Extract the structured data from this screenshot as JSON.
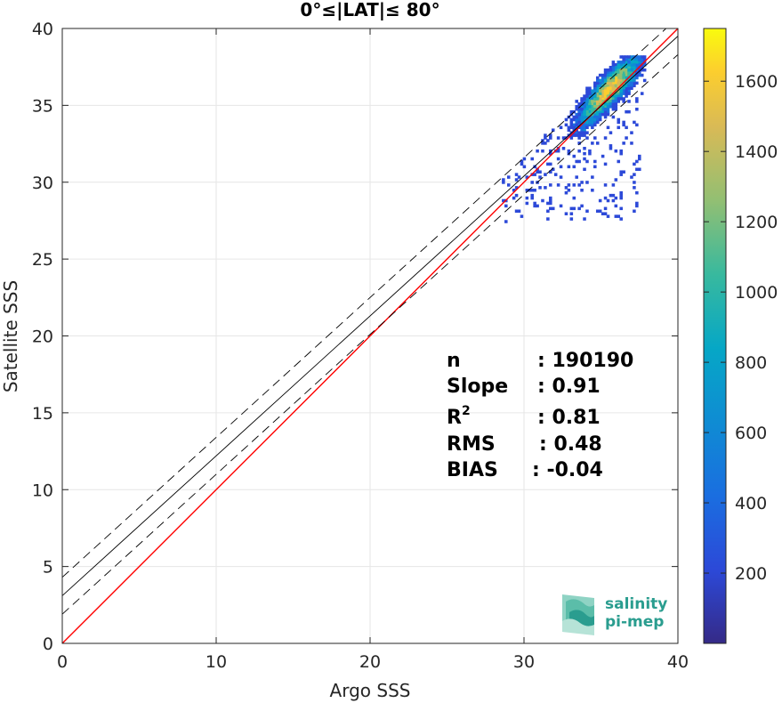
{
  "chart_data": {
    "type": "heatmap",
    "title": "0°≤|LAT|≤ 80°",
    "xlabel": "Argo SSS",
    "ylabel": "Satellite SSS",
    "xlim": [
      0,
      40
    ],
    "ylim": [
      0,
      40
    ],
    "xticks": [
      "0",
      "10",
      "20",
      "30",
      "40"
    ],
    "yticks": [
      "0",
      "5",
      "10",
      "15",
      "20",
      "25",
      "30",
      "35",
      "40"
    ],
    "grid": true,
    "colorbar": {
      "range": [
        0,
        1750
      ],
      "ticks": [
        "200",
        "400",
        "600",
        "800",
        "1000",
        "1200",
        "1400",
        "1600"
      ],
      "colormap": "parula"
    },
    "density_cloud": {
      "center": [
        35.7,
        36.4
      ],
      "x_range": [
        30.5,
        37.8
      ],
      "y_range": [
        31.0,
        38.1
      ],
      "peak_count": 1740
    },
    "lines": [
      {
        "name": "1:1",
        "slope": 1.0,
        "intercept": 0.0,
        "color": "#ff0000",
        "style": "solid"
      },
      {
        "name": "fit",
        "slope": 0.91,
        "intercept": 3.1,
        "color": "#000000",
        "style": "solid"
      },
      {
        "name": "fit +",
        "slope": 0.91,
        "intercept": 4.3,
        "color": "#000000",
        "style": "dashed"
      },
      {
        "name": "fit -",
        "slope": 0.91,
        "intercept": 1.9,
        "color": "#000000",
        "style": "dashed"
      }
    ],
    "stats": [
      {
        "label": "n",
        "value": ": 190190"
      },
      {
        "label": "Slope",
        "value": ": 0.91"
      },
      {
        "label": "R",
        "sup": "2",
        "value": ": 0.81"
      },
      {
        "label": "RMS",
        "value": ": 0.48"
      },
      {
        "label": "BIAS",
        "value": ": -0.04"
      }
    ]
  },
  "logo": {
    "line1": "salinity",
    "line2": "pi-mep"
  }
}
